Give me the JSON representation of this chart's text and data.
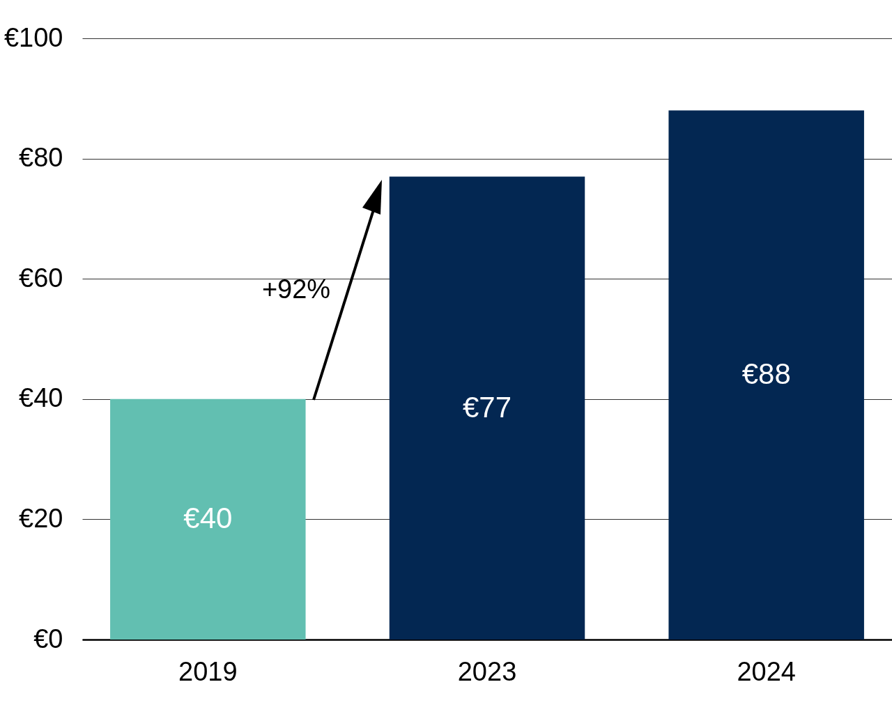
{
  "chart_data": {
    "type": "bar",
    "categories": [
      "2019",
      "2023",
      "2024"
    ],
    "values": [
      40,
      77,
      88
    ],
    "colors": [
      "#62bfb1",
      "#032752",
      "#032752"
    ],
    "value_labels": [
      "€40",
      "€77",
      "€88"
    ],
    "ylim": [
      0,
      100
    ],
    "yticks": [
      {
        "value": 0,
        "label": "€0"
      },
      {
        "value": 20,
        "label": "€20"
      },
      {
        "value": 40,
        "label": "€40"
      },
      {
        "value": 60,
        "label": "€60"
      },
      {
        "value": 80,
        "label": "€80"
      },
      {
        "value": 100,
        "label": "€100"
      }
    ],
    "grid": "y",
    "annotations": [
      "+92%"
    ]
  }
}
